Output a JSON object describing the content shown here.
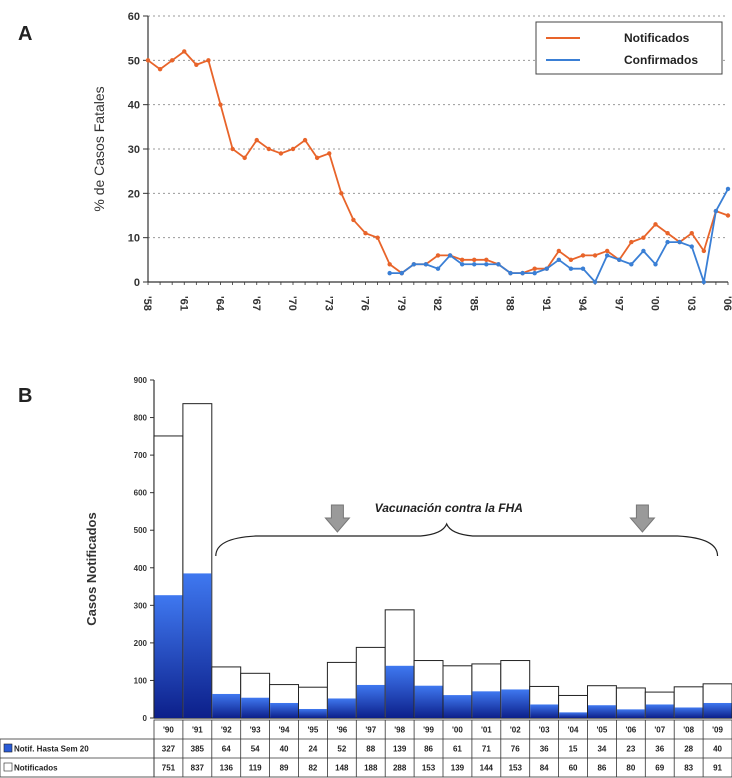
{
  "panel_a_letter": "A",
  "panel_b_letter": "B",
  "chart_data": [
    {
      "type": "line",
      "ylabel": "% de Casos Fatales",
      "ylim": [
        0,
        60
      ],
      "yticks": [
        0,
        10,
        20,
        30,
        40,
        50,
        60
      ],
      "xlim": [
        1958,
        2006
      ],
      "xtick_labels": [
        "'58",
        "'61",
        "'64",
        "'67",
        "'70",
        "'73",
        "'76",
        "'79",
        "'82",
        "'85",
        "'88",
        "'91",
        "'94",
        "'97",
        "'00",
        "'03",
        "'06"
      ],
      "xtick_values": [
        1958,
        1961,
        1964,
        1967,
        1970,
        1973,
        1976,
        1979,
        1982,
        1985,
        1988,
        1991,
        1994,
        1997,
        2000,
        2003,
        2006
      ],
      "grid": "horizontal dotted",
      "legend_position": "top-right",
      "series": [
        {
          "name": "Notificados",
          "color": "#e8642a",
          "x": [
            1958,
            1959,
            1960,
            1961,
            1962,
            1963,
            1964,
            1965,
            1966,
            1967,
            1968,
            1969,
            1970,
            1971,
            1972,
            1973,
            1974,
            1975,
            1976,
            1977,
            1978,
            1979,
            1980,
            1981,
            1982,
            1983,
            1984,
            1985,
            1986,
            1987,
            1988,
            1989,
            1990,
            1991,
            1992,
            1993,
            1994,
            1995,
            1996,
            1997,
            1998,
            1999,
            2000,
            2001,
            2002,
            2003,
            2004,
            2005,
            2006
          ],
          "values": [
            50,
            48,
            50,
            52,
            49,
            50,
            40,
            30,
            28,
            32,
            30,
            29,
            30,
            32,
            28,
            29,
            20,
            14,
            11,
            10,
            4,
            2,
            4,
            4,
            6,
            6,
            5,
            5,
            5,
            4,
            2,
            2,
            3,
            3,
            7,
            5,
            6,
            6,
            7,
            5,
            9,
            10,
            13,
            11,
            9,
            11,
            7,
            16,
            15
          ]
        },
        {
          "name": "Confirmados",
          "color": "#3a7fd5",
          "x": [
            1978,
            1979,
            1980,
            1981,
            1982,
            1983,
            1984,
            1985,
            1986,
            1987,
            1988,
            1989,
            1990,
            1991,
            1992,
            1993,
            1994,
            1995,
            1996,
            1997,
            1998,
            1999,
            2000,
            2001,
            2002,
            2003,
            2004,
            2005,
            2006
          ],
          "values": [
            2,
            2,
            4,
            4,
            3,
            6,
            4,
            4,
            4,
            4,
            2,
            2,
            2,
            3,
            5,
            3,
            3,
            0,
            6,
            5,
            4,
            7,
            4,
            9,
            9,
            8,
            0,
            16,
            21
          ]
        }
      ]
    },
    {
      "type": "bar",
      "ylabel": "Casos Notificados",
      "ylim": [
        0,
        900
      ],
      "yticks": [
        0,
        100,
        200,
        300,
        400,
        500,
        600,
        700,
        800,
        900
      ],
      "categories": [
        "'90",
        "'91",
        "'92",
        "'93",
        "'94",
        "'95",
        "'96",
        "'97",
        "'98",
        "'99",
        "'00",
        "'01",
        "'02",
        "'03",
        "'04",
        "'05",
        "'06",
        "'07",
        "'08",
        "'09"
      ],
      "series": [
        {
          "name": "Notif. Hasta Sem 20",
          "color": "#2a5bd7",
          "values": [
            327,
            385,
            64,
            54,
            40,
            24,
            52,
            88,
            139,
            86,
            61,
            71,
            76,
            36,
            15,
            34,
            23,
            36,
            28,
            40
          ]
        },
        {
          "name": "Notificados",
          "color": "#ffffff",
          "values": [
            751,
            837,
            136,
            119,
            89,
            82,
            148,
            188,
            288,
            153,
            139,
            144,
            153,
            84,
            60,
            86,
            80,
            69,
            83,
            91
          ]
        }
      ],
      "annotation": "Vacunación contra la FHA"
    }
  ]
}
